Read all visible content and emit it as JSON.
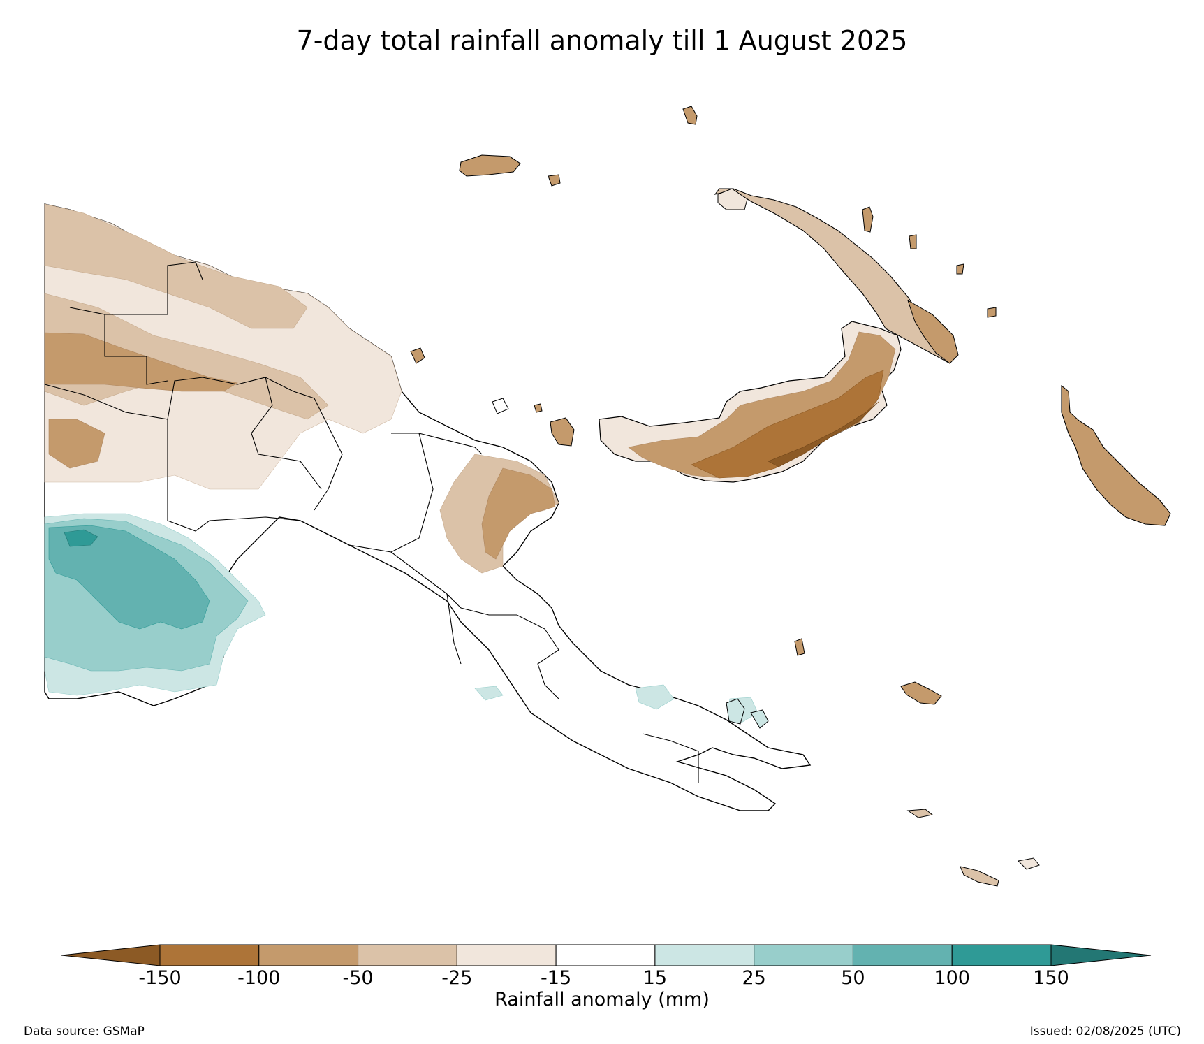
{
  "title": "7-day total rainfall anomaly till 1 August 2025",
  "legend": {
    "label": "Rainfall anomaly (mm)",
    "ticks": [
      "-150",
      "-100",
      "-50",
      "-25",
      "-15",
      "15",
      "25",
      "50",
      "100",
      "150"
    ],
    "bins": [
      {
        "range": "< -150",
        "color": "#8c5a25"
      },
      {
        "range": "-150 to -100",
        "color": "#ad7438"
      },
      {
        "range": "-100 to -50",
        "color": "#c49a6c"
      },
      {
        "range": "-50 to -25",
        "color": "#dbc2a8"
      },
      {
        "range": "-25 to -15",
        "color": "#f1e6dc"
      },
      {
        "range": "-15 to 15",
        "color": "#ffffff"
      },
      {
        "range": "15 to 25",
        "color": "#cce6e4"
      },
      {
        "range": "25 to 50",
        "color": "#98cecb"
      },
      {
        "range": "50 to 100",
        "color": "#63b2b0"
      },
      {
        "range": "100 to 150",
        "color": "#2f9a96"
      },
      {
        "range": "> 150",
        "color": "#237774"
      }
    ]
  },
  "footer": {
    "source": "Data source: GSMaP",
    "issued": "Issued: 02/08/2025 (UTC)"
  }
}
